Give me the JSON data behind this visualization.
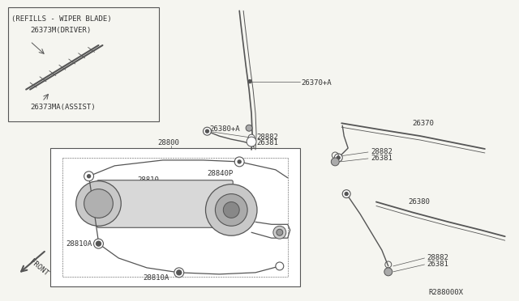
{
  "bg_color": "#f5f5f0",
  "line_color": "#555555",
  "label_color": "#333333",
  "figsize": [
    6.4,
    3.72
  ],
  "dpi": 100,
  "diagram_code": "R288000X",
  "refills_title": "(REFILLS - WIPER BLADE)",
  "refills_driver_label": "26373M(DRIVER)",
  "refills_assist_label": "26373MA(ASSIST)",
  "motor_label": "28800"
}
